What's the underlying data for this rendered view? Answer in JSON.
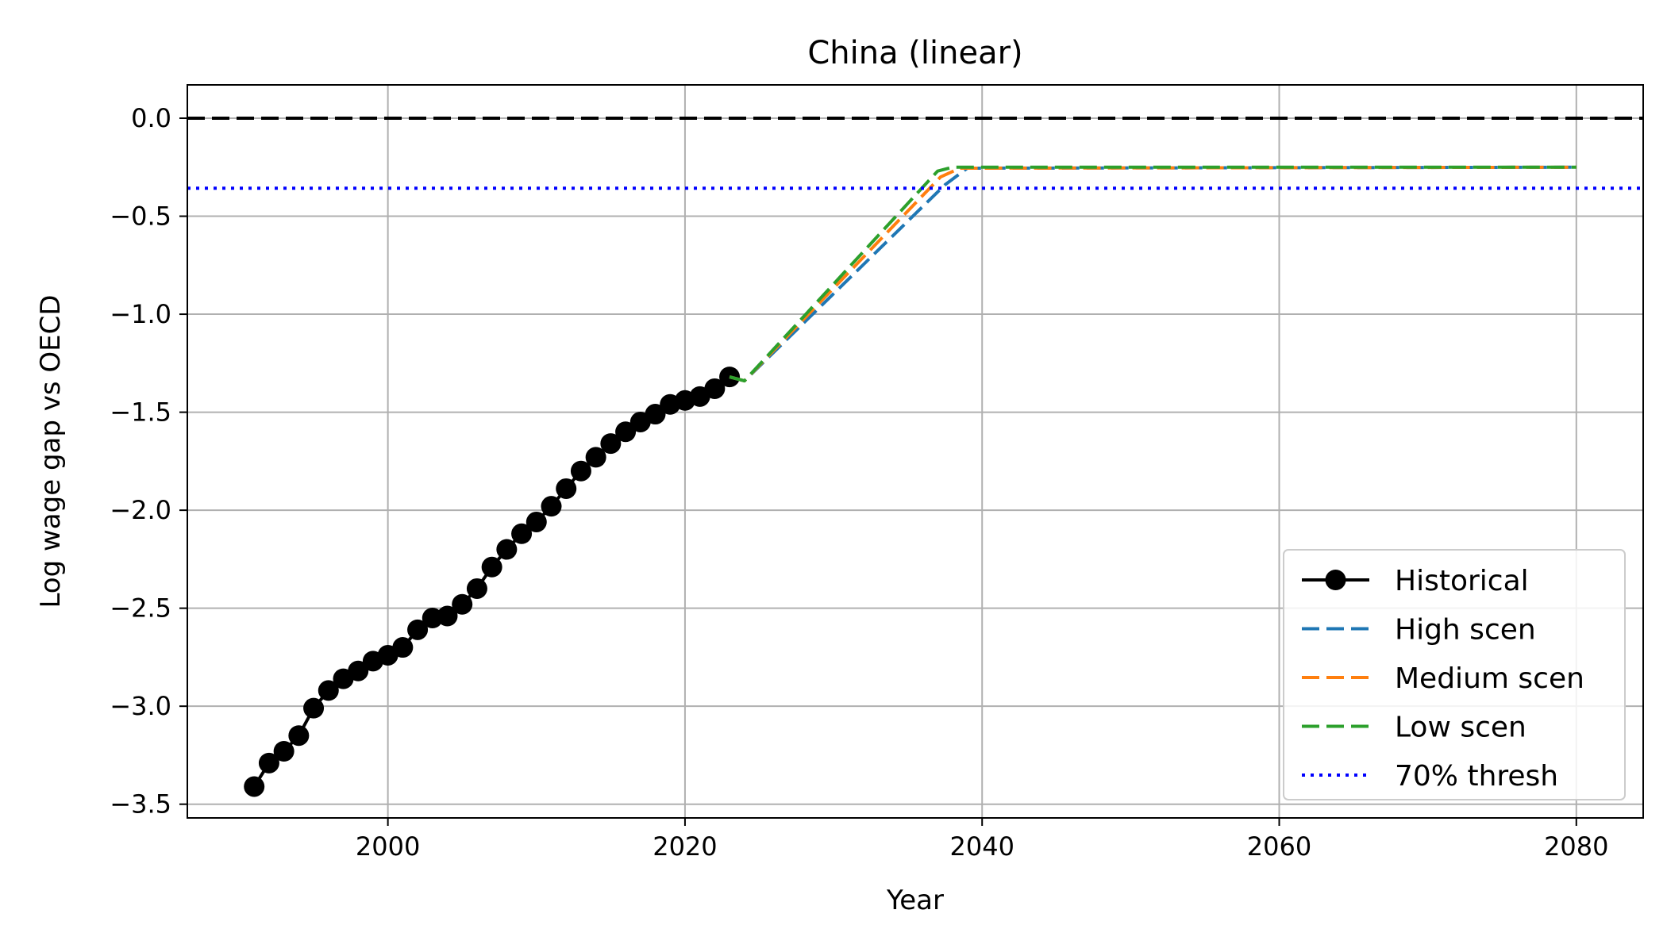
{
  "chart_data": {
    "type": "line",
    "title": "China (linear)",
    "xlabel": "Year",
    "ylabel": "Log wage gap vs OECD",
    "xlim": [
      1986.5,
      2084.5
    ],
    "ylim": [
      -3.57,
      0.17
    ],
    "xticks": [
      2000,
      2020,
      2040,
      2060,
      2080
    ],
    "yticks": [
      0.0,
      -0.5,
      -1.0,
      -1.5,
      -2.0,
      -2.5,
      -3.0,
      -3.5
    ],
    "ytick_labels": [
      "0.0",
      "−0.5",
      "−1.0",
      "−1.5",
      "−2.0",
      "−2.5",
      "−3.0",
      "−3.5"
    ],
    "xtick_labels": [
      "2000",
      "2020",
      "2040",
      "2060",
      "2080"
    ],
    "grid": true,
    "legend_position": "lower-right",
    "series": [
      {
        "name": "Historical",
        "style": "solid-marker",
        "color": "#000000",
        "x": [
          1991,
          1992,
          1993,
          1994,
          1995,
          1996,
          1997,
          1998,
          1999,
          2000,
          2001,
          2002,
          2003,
          2004,
          2005,
          2006,
          2007,
          2008,
          2009,
          2010,
          2011,
          2012,
          2013,
          2014,
          2015,
          2016,
          2017,
          2018,
          2019,
          2020,
          2021,
          2022,
          2023
        ],
        "y": [
          -3.41,
          -3.29,
          -3.23,
          -3.15,
          -3.01,
          -2.92,
          -2.86,
          -2.82,
          -2.77,
          -2.74,
          -2.7,
          -2.61,
          -2.55,
          -2.54,
          -2.48,
          -2.4,
          -2.29,
          -2.2,
          -2.12,
          -2.06,
          -1.98,
          -1.89,
          -1.8,
          -1.73,
          -1.66,
          -1.6,
          -1.55,
          -1.51,
          -1.46,
          -1.44,
          -1.42,
          -1.38,
          -1.32
        ]
      },
      {
        "name": "High scen",
        "style": "dashed",
        "color": "#1f77b4",
        "x": [
          2023,
          2024,
          2037.5,
          2039,
          2080
        ],
        "y": [
          -1.32,
          -1.34,
          -0.34,
          -0.255,
          -0.25
        ]
      },
      {
        "name": "Medium scen",
        "style": "dashed",
        "color": "#ff7f0e",
        "x": [
          2023,
          2024,
          2037.2,
          2038.5,
          2080
        ],
        "y": [
          -1.32,
          -1.34,
          -0.3,
          -0.255,
          -0.25
        ]
      },
      {
        "name": "Low scen",
        "style": "dashed",
        "color": "#2ca02c",
        "x": [
          2023,
          2024,
          2037,
          2038,
          2080
        ],
        "y": [
          -1.32,
          -1.34,
          -0.27,
          -0.25,
          -0.25
        ]
      },
      {
        "name": "70% thresh",
        "style": "dotted",
        "color": "#0000ff",
        "y_constant": -0.357
      }
    ],
    "reference_line": {
      "y": 0.0,
      "color": "#000000",
      "style": "dashed"
    }
  }
}
